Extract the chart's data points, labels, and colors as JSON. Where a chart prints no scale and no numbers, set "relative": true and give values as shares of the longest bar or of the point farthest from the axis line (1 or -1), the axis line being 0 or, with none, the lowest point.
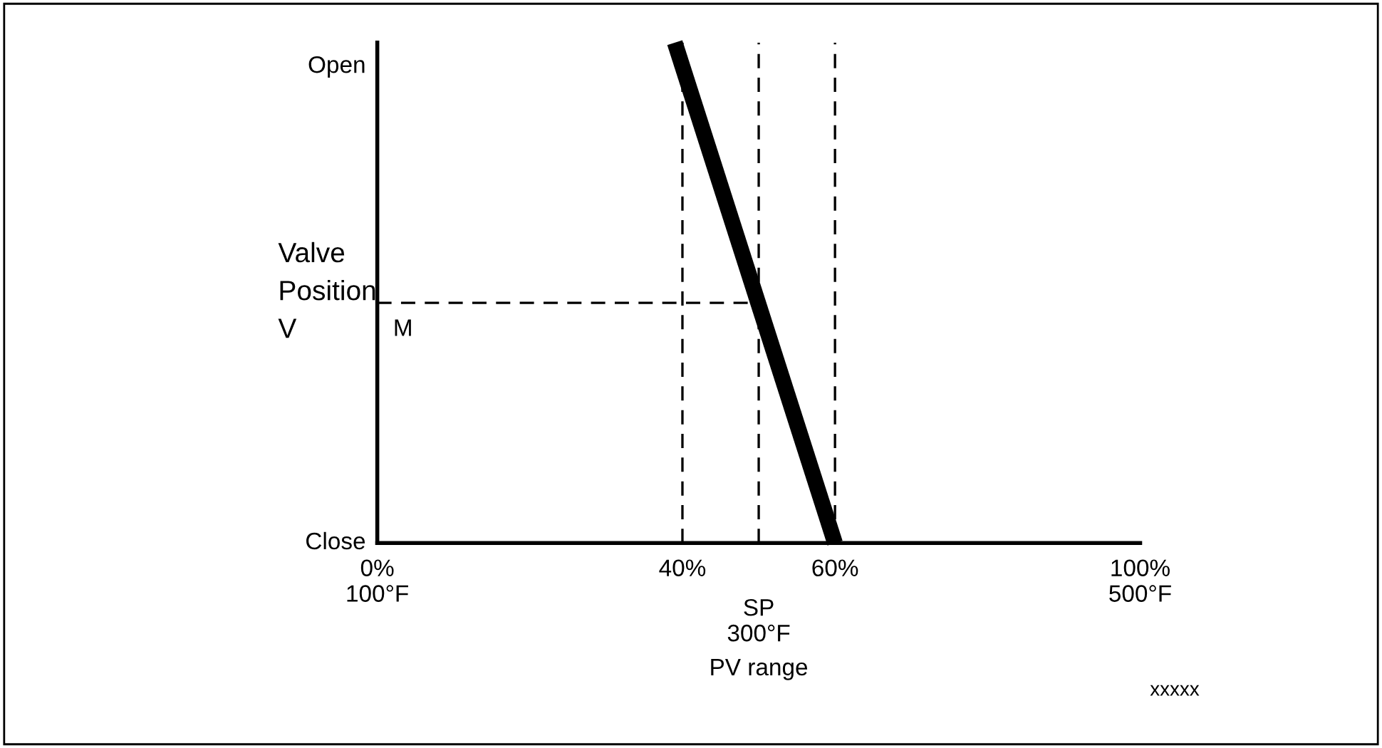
{
  "chart_data": {
    "type": "line",
    "ylabel": "Valve\nPosition\nV",
    "xlabel": "PV range",
    "relative": true,
    "xlim": [
      0,
      100
    ],
    "xticks": [
      {
        "value": 0,
        "label": "0%\n100°F"
      },
      {
        "value": 40,
        "label": "40%"
      },
      {
        "value": 60,
        "label": "60%"
      },
      {
        "value": 100,
        "label": "100%\n500°F"
      }
    ],
    "series": [
      {
        "x": [
          39,
          60
        ],
        "values": [
          1,
          0
        ],
        "color": "#000000",
        "line_style": "solid"
      },
      {
        "x": [
          0,
          50
        ],
        "values": [
          0.48,
          0.48
        ],
        "color": "#000000",
        "line_style": "dashed"
      }
    ],
    "ref_lines": [
      {
        "axis": "x",
        "value": 40,
        "color": "#000000",
        "line_style": "dashed"
      },
      {
        "axis": "x",
        "value": 50,
        "color": "#000000",
        "line_style": "dashed",
        "label": "SP\n300°F"
      },
      {
        "axis": "x",
        "value": 60,
        "color": "#000000",
        "line_style": "dashed"
      }
    ],
    "annotations": [
      {
        "text": "M",
        "x": 0,
        "y": 0.48
      },
      "Open",
      "Close",
      "xxxxx"
    ],
    "grid": false,
    "legend": false
  }
}
